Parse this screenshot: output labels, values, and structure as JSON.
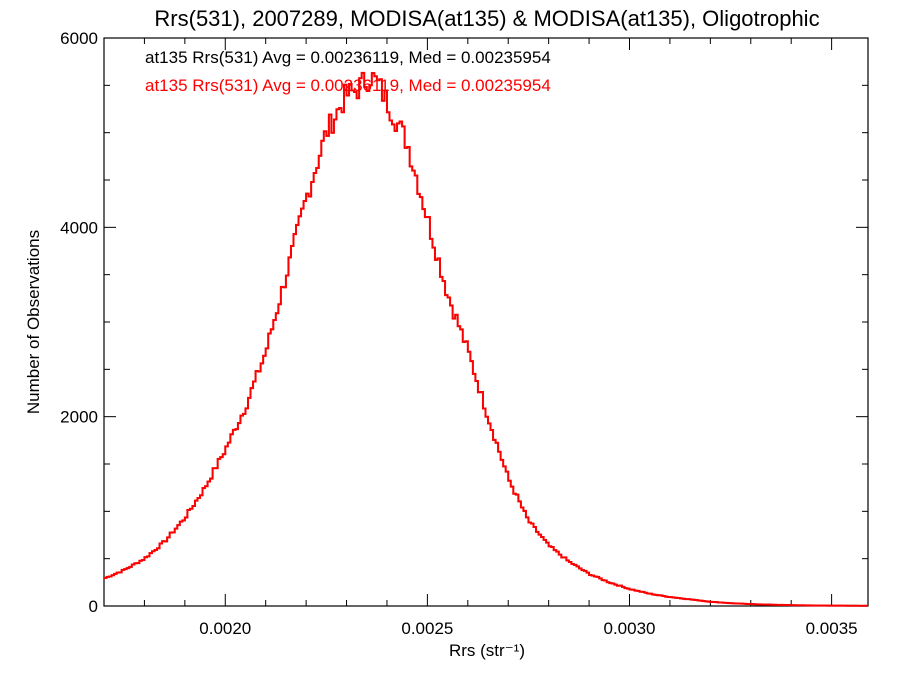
{
  "colors": {
    "background": "#ffffff",
    "axes": "#000000",
    "series_black": "#000000",
    "series_red": "#ff0000"
  },
  "chart_data": {
    "type": "line",
    "step": true,
    "title": "Rrs(531), 2007289, MODISA(at135) & MODISA(at135), Oligotrophic",
    "xlabel": "Rrs (str⁻¹)",
    "ylabel": "Number of Observations",
    "xlim": [
      0.0017,
      0.00359
    ],
    "ylim": [
      0,
      6000
    ],
    "x_ticks": [
      0.002,
      0.0025,
      0.003,
      0.0035
    ],
    "x_tick_labels": [
      "0.0020",
      "0.0025",
      "0.0030",
      "0.0035"
    ],
    "y_ticks": [
      0,
      2000,
      4000,
      6000
    ],
    "y_tick_labels": [
      "0",
      "2000",
      "4000",
      "6000"
    ],
    "grid": false,
    "annotations": [
      {
        "text": "at135 Rrs(531) Avg = 0.00236119, Med = 0.00235954",
        "color": "#000000"
      },
      {
        "text": "at135 Rrs(531) Avg = 0.00236119, Med = 0.00235954",
        "color": "#ff0000"
      }
    ],
    "x": [
      0.0017,
      0.00175,
      0.0018,
      0.00185,
      0.0019,
      0.00195,
      0.002,
      0.00205,
      0.0021,
      0.00215,
      0.0022,
      0.00225,
      0.0023,
      0.00232,
      0.00234,
      0.00236,
      0.00238,
      0.0024,
      0.00245,
      0.0025,
      0.00255,
      0.0026,
      0.00265,
      0.0027,
      0.00275,
      0.0028,
      0.00285,
      0.0029,
      0.00295,
      0.003,
      0.00305,
      0.0031,
      0.00315,
      0.0032,
      0.00325,
      0.0033,
      0.00335,
      0.0034,
      0.00345,
      0.0035,
      0.00355,
      0.00359
    ],
    "series": [
      {
        "values": [
          290,
          380,
          500,
          680,
          930,
          1250,
          1650,
          2100,
          2680,
          3480,
          4300,
          5000,
          5400,
          5430,
          5520,
          5600,
          5500,
          5330,
          4900,
          4100,
          3300,
          2700,
          2000,
          1350,
          900,
          640,
          470,
          340,
          250,
          180,
          130,
          95,
          70,
          45,
          30,
          20,
          14,
          9,
          6,
          4,
          3,
          2
        ],
        "color": "#000000"
      },
      {
        "values": [
          290,
          380,
          500,
          680,
          930,
          1250,
          1650,
          2100,
          2680,
          3480,
          4300,
          5000,
          5400,
          5430,
          5520,
          5600,
          5500,
          5330,
          4900,
          4100,
          3300,
          2700,
          2000,
          1350,
          900,
          640,
          470,
          340,
          250,
          180,
          130,
          95,
          70,
          45,
          30,
          20,
          14,
          9,
          6,
          4,
          3,
          2
        ],
        "color": "#ff0000"
      }
    ]
  }
}
